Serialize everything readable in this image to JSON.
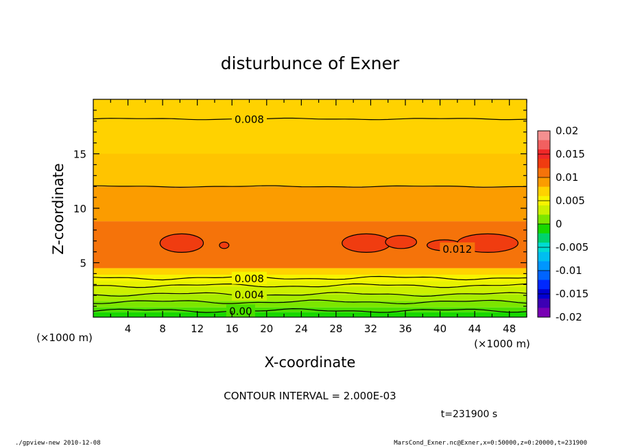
{
  "chart_data": {
    "type": "contour",
    "title": "disturbunce of Exner",
    "xlabel": "X-coordinate",
    "ylabel": "Z-coordinate",
    "x_unit": "(×1000 m)",
    "y_unit": "(×1000 m)",
    "xlim": [
      0,
      50
    ],
    "ylim": [
      0,
      20
    ],
    "x_ticks": [
      4,
      8,
      12,
      16,
      20,
      24,
      28,
      32,
      36,
      40,
      44,
      48
    ],
    "y_ticks": [
      5,
      10,
      15
    ],
    "contour_interval": "CONTOUR INTERVAL = 2.000E-03",
    "time_label": "t=231900 s",
    "contour_labels": [
      {
        "value": "0.008",
        "x": 18,
        "z": 18.2
      },
      {
        "value": "0.008",
        "x": 18,
        "z": 3.6
      },
      {
        "value": "0.004",
        "x": 18,
        "z": 2.1
      },
      {
        "value": "0.00",
        "x": 17,
        "z": 0.6
      },
      {
        "value": "0.012",
        "x": 42,
        "z": 6.3
      }
    ],
    "colorbar": {
      "labels": [
        "0.02",
        "0.015",
        "0.01",
        "0.005",
        "0",
        "-0.005",
        "-0.01",
        "-0.015",
        "-0.02"
      ],
      "levels": [
        {
          "lo": 0.018,
          "hi": 0.02,
          "color": "#f49090"
        },
        {
          "lo": 0.016,
          "hi": 0.018,
          "color": "#f26060"
        },
        {
          "lo": 0.014,
          "hi": 0.016,
          "color": "#f02828"
        },
        {
          "lo": 0.012,
          "hi": 0.014,
          "color": "#f03c10"
        },
        {
          "lo": 0.01,
          "hi": 0.012,
          "color": "#f5730a"
        },
        {
          "lo": 0.008,
          "hi": 0.01,
          "color": "#fb9c00"
        },
        {
          "lo": 0.006,
          "hi": 0.008,
          "color": "#ffd200"
        },
        {
          "lo": 0.004,
          "hi": 0.006,
          "color": "#f7f400"
        },
        {
          "lo": 0.002,
          "hi": 0.004,
          "color": "#ccf000"
        },
        {
          "lo": 0.0,
          "hi": 0.002,
          "color": "#7ce600"
        },
        {
          "lo": -0.002,
          "hi": 0.0,
          "color": "#18d800"
        },
        {
          "lo": -0.004,
          "hi": -0.002,
          "color": "#00d26e"
        },
        {
          "lo": -0.006,
          "hi": -0.004,
          "color": "#00dcd2"
        },
        {
          "lo": -0.008,
          "hi": -0.006,
          "color": "#00bef0"
        },
        {
          "lo": -0.01,
          "hi": -0.008,
          "color": "#0096ff"
        },
        {
          "lo": -0.012,
          "hi": -0.01,
          "color": "#0064ff"
        },
        {
          "lo": -0.014,
          "hi": -0.012,
          "color": "#0028ff"
        },
        {
          "lo": -0.016,
          "hi": -0.014,
          "color": "#0000d2"
        },
        {
          "lo": -0.018,
          "hi": -0.016,
          "color": "#3c00b4"
        },
        {
          "lo": -0.02,
          "hi": -0.018,
          "color": "#7800b4"
        }
      ]
    },
    "bands": [
      {
        "z0": 0.0,
        "z1": 0.45,
        "color": "#18d800"
      },
      {
        "z0": 0.45,
        "z1": 0.9,
        "color": "#4ade00"
      },
      {
        "z0": 0.9,
        "z1": 1.5,
        "color": "#7ce600"
      },
      {
        "z0": 1.5,
        "z1": 2.1,
        "color": "#a8ec00"
      },
      {
        "z0": 2.1,
        "z1": 2.8,
        "color": "#ccf000"
      },
      {
        "z0": 2.8,
        "z1": 3.3,
        "color": "#e8f200"
      },
      {
        "z0": 3.3,
        "z1": 3.9,
        "color": "#f7f400"
      },
      {
        "z0": 3.9,
        "z1": 4.5,
        "color": "#ffd200"
      },
      {
        "z0": 4.5,
        "z1": 8.8,
        "color": "#f5730a"
      },
      {
        "z0": 8.8,
        "z1": 12.0,
        "color": "#fb9c00"
      },
      {
        "z0": 12.0,
        "z1": 15.0,
        "color": "#ffc400"
      },
      {
        "z0": 15.0,
        "z1": 20.0,
        "color": "#ffd200"
      }
    ],
    "contour_lines_z": [
      18.2,
      12.0,
      3.6,
      2.9,
      2.1,
      1.4,
      0.6
    ],
    "blobs": [
      {
        "cx": 10.2,
        "cz": 6.8,
        "rx": 2.5,
        "rz": 0.85
      },
      {
        "cx": 15.1,
        "cz": 6.6,
        "rx": 0.55,
        "rz": 0.3
      },
      {
        "cx": 31.5,
        "cz": 6.8,
        "rx": 2.8,
        "rz": 0.85
      },
      {
        "cx": 35.5,
        "cz": 6.9,
        "rx": 1.8,
        "rz": 0.6
      },
      {
        "cx": 40.5,
        "cz": 6.6,
        "rx": 2.0,
        "rz": 0.5
      },
      {
        "cx": 45.5,
        "cz": 6.8,
        "rx": 3.5,
        "rz": 0.85
      }
    ]
  },
  "footer": {
    "left": "./gpview-new  2010-12-08",
    "right": "MarsCond_Exner.nc@Exner,x=0:50000,z=0:20000,t=231900"
  }
}
